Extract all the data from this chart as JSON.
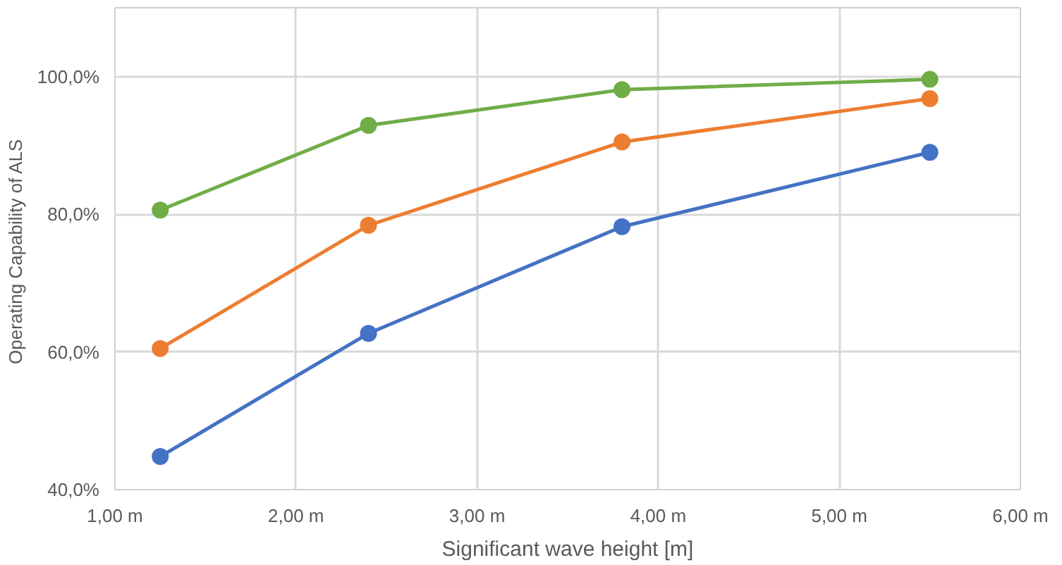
{
  "chart_data": {
    "type": "line",
    "xlabel": "Significant wave height [m]",
    "ylabel": "Operating Capability  of ALS",
    "x": [
      1.25,
      2.4,
      3.8,
      5.5
    ],
    "series": [
      {
        "color": "#4472c4",
        "values": [
          44.8,
          62.7,
          78.2,
          89.0
        ]
      },
      {
        "color": "#ed7d31",
        "values": [
          60.5,
          78.4,
          90.5,
          96.8
        ]
      },
      {
        "color": "#70ad47",
        "values": [
          80.6,
          92.9,
          98.1,
          99.6
        ]
      }
    ],
    "xlim": [
      1,
      6
    ],
    "xticks": [
      {
        "value": 1,
        "label": "1,00 m"
      },
      {
        "value": 2,
        "label": "2,00 m"
      },
      {
        "value": 3,
        "label": "3,00 m"
      },
      {
        "value": 4,
        "label": "4,00 m"
      },
      {
        "value": 5,
        "label": "5,00 m"
      },
      {
        "value": 6,
        "label": "6,00 m"
      }
    ],
    "ylim": [
      40,
      110
    ],
    "yticks": [
      {
        "value": 40,
        "label": "40,0%"
      },
      {
        "value": 60,
        "label": "60,0%"
      },
      {
        "value": 80,
        "label": "80,0%"
      },
      {
        "value": 100,
        "label": "100,0%"
      }
    ],
    "grid": true,
    "marker": "circle",
    "line_style": "solid"
  }
}
